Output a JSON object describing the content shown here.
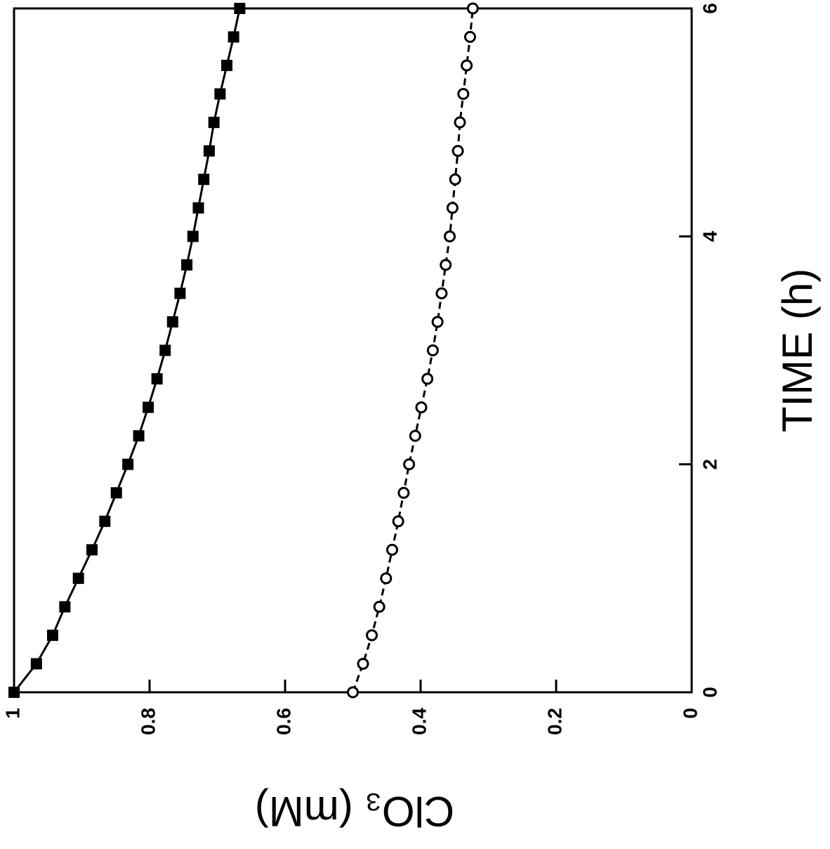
{
  "chart_data": {
    "type": "line",
    "xlabel": "TIME (h)",
    "ylabel": "ClO₃ (mM)",
    "x": [
      0,
      0.25,
      0.5,
      0.75,
      1,
      1.25,
      1.5,
      1.75,
      2,
      2.25,
      2.5,
      2.75,
      3,
      3.25,
      3.5,
      3.75,
      4,
      4.25,
      4.5,
      4.75,
      5,
      5.25,
      5.5,
      5.75,
      6
    ],
    "series": [
      {
        "color": "#000000",
        "marker": "filled-square",
        "dashed": false,
        "values": [
          1.0,
          0.967,
          0.943,
          0.925,
          0.905,
          0.885,
          0.866,
          0.849,
          0.832,
          0.816,
          0.802,
          0.789,
          0.777,
          0.766,
          0.755,
          0.745,
          0.736,
          0.728,
          0.72,
          0.712,
          0.705,
          0.696,
          0.686,
          0.676,
          0.667
        ]
      },
      {
        "color": "#000000",
        "marker": "open-circle",
        "dashed": true,
        "values": [
          0.5,
          0.485,
          0.472,
          0.461,
          0.451,
          0.442,
          0.433,
          0.425,
          0.417,
          0.408,
          0.399,
          0.39,
          0.382,
          0.375,
          0.369,
          0.363,
          0.357,
          0.353,
          0.349,
          0.345,
          0.342,
          0.337,
          0.332,
          0.327,
          0.323
        ]
      }
    ],
    "xlim": [
      0,
      6
    ],
    "xticks": [
      0,
      2,
      4,
      6
    ],
    "ylim": [
      0,
      1
    ],
    "yticks": [
      0,
      0.2,
      0.4,
      0.6,
      0.8,
      1
    ],
    "rotation": -90
  }
}
